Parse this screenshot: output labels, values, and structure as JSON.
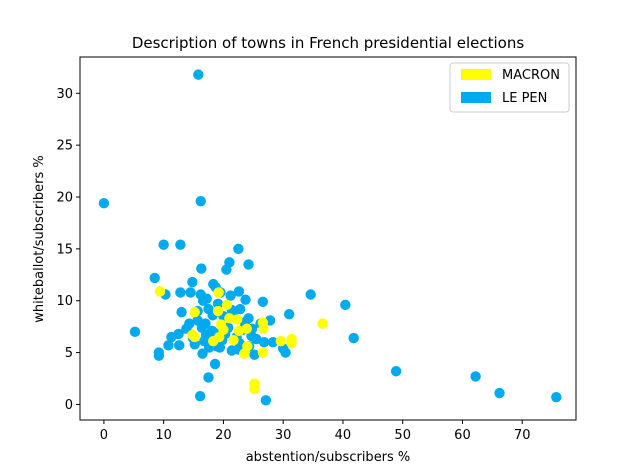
{
  "chart_data": {
    "type": "scatter",
    "title": "Description of towns in French presidential elections",
    "xlabel": "abstention/subscribers %",
    "ylabel": "whiteballot/subscribers %",
    "xlim": [
      -4,
      79
    ],
    "ylim": [
      -1.5,
      33.5
    ],
    "xticks": [
      "0",
      "10",
      "20",
      "30",
      "40",
      "50",
      "60",
      "70"
    ],
    "xtick_values": [
      0,
      10,
      20,
      30,
      40,
      50,
      60,
      70
    ],
    "yticks": [
      "0",
      "5",
      "10",
      "15",
      "20",
      "25",
      "30"
    ],
    "ytick_values": [
      0,
      5,
      10,
      15,
      20,
      25,
      30
    ],
    "legend_position": "top-right",
    "series": [
      {
        "name": "LE PEN",
        "color": "#00aaee",
        "points": [
          [
            15.8,
            31.8
          ],
          [
            0,
            19.4
          ],
          [
            16.2,
            19.6
          ],
          [
            10,
            15.4
          ],
          [
            12.8,
            15.4
          ],
          [
            22.5,
            15
          ],
          [
            16.3,
            13.1
          ],
          [
            21,
            13.7
          ],
          [
            24.2,
            13.5
          ],
          [
            20.5,
            13
          ],
          [
            8.5,
            12.2
          ],
          [
            14.8,
            11.8
          ],
          [
            10.3,
            10.6
          ],
          [
            12.8,
            10.8
          ],
          [
            14.5,
            10.8
          ],
          [
            16.2,
            10.6
          ],
          [
            17.2,
            10.2
          ],
          [
            18.3,
            11.6
          ],
          [
            18.7,
            11.3
          ],
          [
            19.5,
            10.8
          ],
          [
            21.2,
            10.5
          ],
          [
            22.6,
            10.9
          ],
          [
            23.7,
            10.1
          ],
          [
            26.6,
            9.9
          ],
          [
            34.6,
            10.6
          ],
          [
            40.4,
            9.6
          ],
          [
            13,
            8.9
          ],
          [
            15.7,
            9
          ],
          [
            17.5,
            9.2
          ],
          [
            18.2,
            8.6
          ],
          [
            20,
            8.5
          ],
          [
            21.7,
            8.8
          ],
          [
            22.8,
            9.2
          ],
          [
            24.2,
            8.3
          ],
          [
            26.2,
            7.8
          ],
          [
            27.8,
            8.1
          ],
          [
            31,
            8.7
          ],
          [
            5.2,
            7
          ],
          [
            11.3,
            6.5
          ],
          [
            12.5,
            6.8
          ],
          [
            13.8,
            7.3
          ],
          [
            14.9,
            6.4
          ],
          [
            16.4,
            7.4
          ],
          [
            17.1,
            6.7
          ],
          [
            18.5,
            6.9
          ],
          [
            19.8,
            6.2
          ],
          [
            20.8,
            7.4
          ],
          [
            22.2,
            6.5
          ],
          [
            23.2,
            7.2
          ],
          [
            24.7,
            6.6
          ],
          [
            25.5,
            6.3
          ],
          [
            26.8,
            6
          ],
          [
            28.3,
            6
          ],
          [
            41.8,
            6.4
          ],
          [
            9.2,
            5
          ],
          [
            9.2,
            4.7
          ],
          [
            10.8,
            5.7
          ],
          [
            12.6,
            5.7
          ],
          [
            15.2,
            5.8
          ],
          [
            16.5,
            4.9
          ],
          [
            17.6,
            5.5
          ],
          [
            18.9,
            5.6
          ],
          [
            19.4,
            5.5
          ],
          [
            21.4,
            5.2
          ],
          [
            22.5,
            5.3
          ],
          [
            24.3,
            5.6
          ],
          [
            25.2,
            4.8
          ],
          [
            30,
            5.4
          ],
          [
            30.4,
            5
          ],
          [
            18.6,
            3.9
          ],
          [
            17.5,
            2.6
          ],
          [
            48.9,
            3.2
          ],
          [
            62.2,
            2.7
          ],
          [
            66.2,
            1.1
          ],
          [
            75.7,
            0.7
          ],
          [
            16.1,
            0.8
          ],
          [
            27.1,
            0.4
          ],
          [
            17,
            7.8
          ],
          [
            19.1,
            9.7
          ],
          [
            21.4,
            9.1
          ],
          [
            15.7,
            8.1
          ],
          [
            23.6,
            7.9
          ],
          [
            17.9,
            5.9
          ],
          [
            20.3,
            6.8
          ],
          [
            16.8,
            6.1
          ],
          [
            22.7,
            5.9
          ],
          [
            24.8,
            7.3
          ],
          [
            18.1,
            7.1
          ],
          [
            14.3,
            7.8
          ],
          [
            16.6,
            10
          ]
        ]
      },
      {
        "name": "MACRON",
        "color": "#ffff00",
        "points": [
          [
            9.4,
            10.9
          ],
          [
            19.2,
            10.8
          ],
          [
            20.6,
            9.6
          ],
          [
            15.2,
            8.9
          ],
          [
            19.1,
            9
          ],
          [
            22.3,
            8.2
          ],
          [
            21,
            8.3
          ],
          [
            26.6,
            7.9
          ],
          [
            36.6,
            7.8
          ],
          [
            19.6,
            7.7
          ],
          [
            20,
            7.2
          ],
          [
            22.6,
            7.1
          ],
          [
            23.9,
            7.3
          ],
          [
            26.7,
            7.3
          ],
          [
            15.2,
            6.5
          ],
          [
            19.3,
            6.5
          ],
          [
            18.3,
            6.1
          ],
          [
            21.7,
            6.2
          ],
          [
            29.6,
            6.1
          ],
          [
            31.4,
            5.9
          ],
          [
            31.4,
            6.3
          ],
          [
            24,
            5.6
          ],
          [
            23.5,
            4.9
          ],
          [
            26.6,
            5
          ],
          [
            25.2,
            2
          ],
          [
            25.2,
            1.5
          ],
          [
            14.8,
            6.7
          ]
        ]
      }
    ]
  }
}
